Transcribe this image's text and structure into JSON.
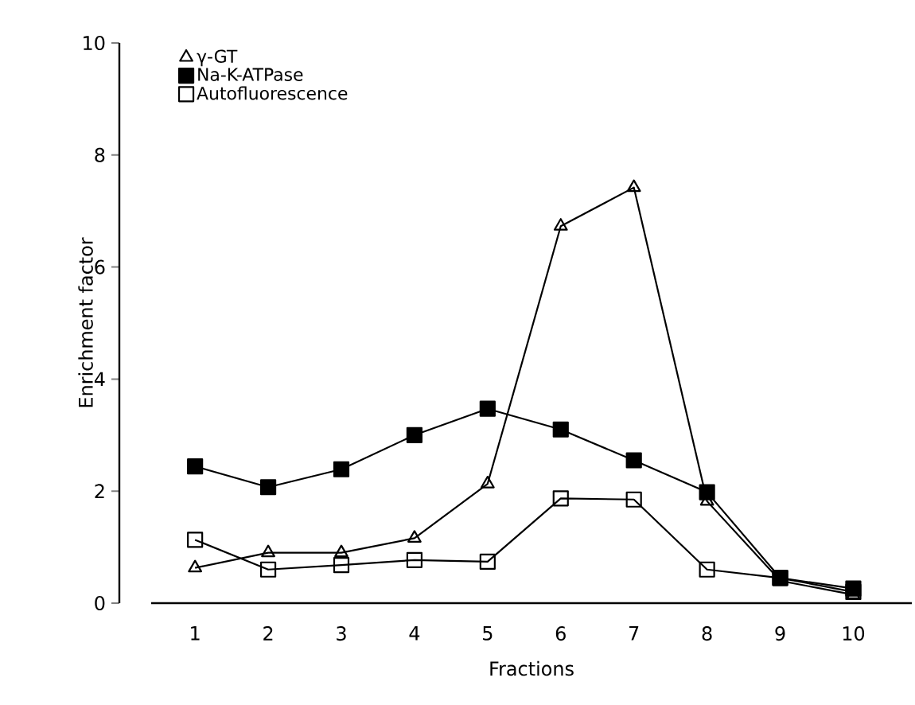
{
  "chart_data": {
    "type": "line",
    "xlabel": "Fractions",
    "ylabel": "Enrichment factor",
    "categories": [
      "1",
      "2",
      "3",
      "4",
      "5",
      "6",
      "7",
      "8",
      "9",
      "10"
    ],
    "series": [
      {
        "name": "γ-GT",
        "color": "#000000",
        "marker": "triangle",
        "values": [
          0.63,
          0.9,
          0.9,
          1.16,
          2.13,
          6.73,
          7.42,
          1.82,
          0.4,
          0.15
        ]
      },
      {
        "name": "Na-K-ATPase",
        "color": "#000000",
        "marker": "square",
        "values": [
          2.44,
          2.07,
          2.39,
          3.0,
          3.47,
          3.1,
          2.55,
          1.98,
          0.45,
          0.26
        ]
      },
      {
        "name": "Autofluorescence",
        "color": "#000000",
        "marker": "square",
        "values": [
          1.13,
          0.6,
          0.68,
          0.77,
          0.74,
          1.87,
          1.85,
          0.6,
          0.45,
          0.2
        ]
      }
    ],
    "ylim": [
      0,
      10
    ],
    "yticks": [
      0,
      2,
      4,
      6,
      8,
      10
    ],
    "legend": "top left",
    "grid": false,
    "line_style": "solid"
  }
}
